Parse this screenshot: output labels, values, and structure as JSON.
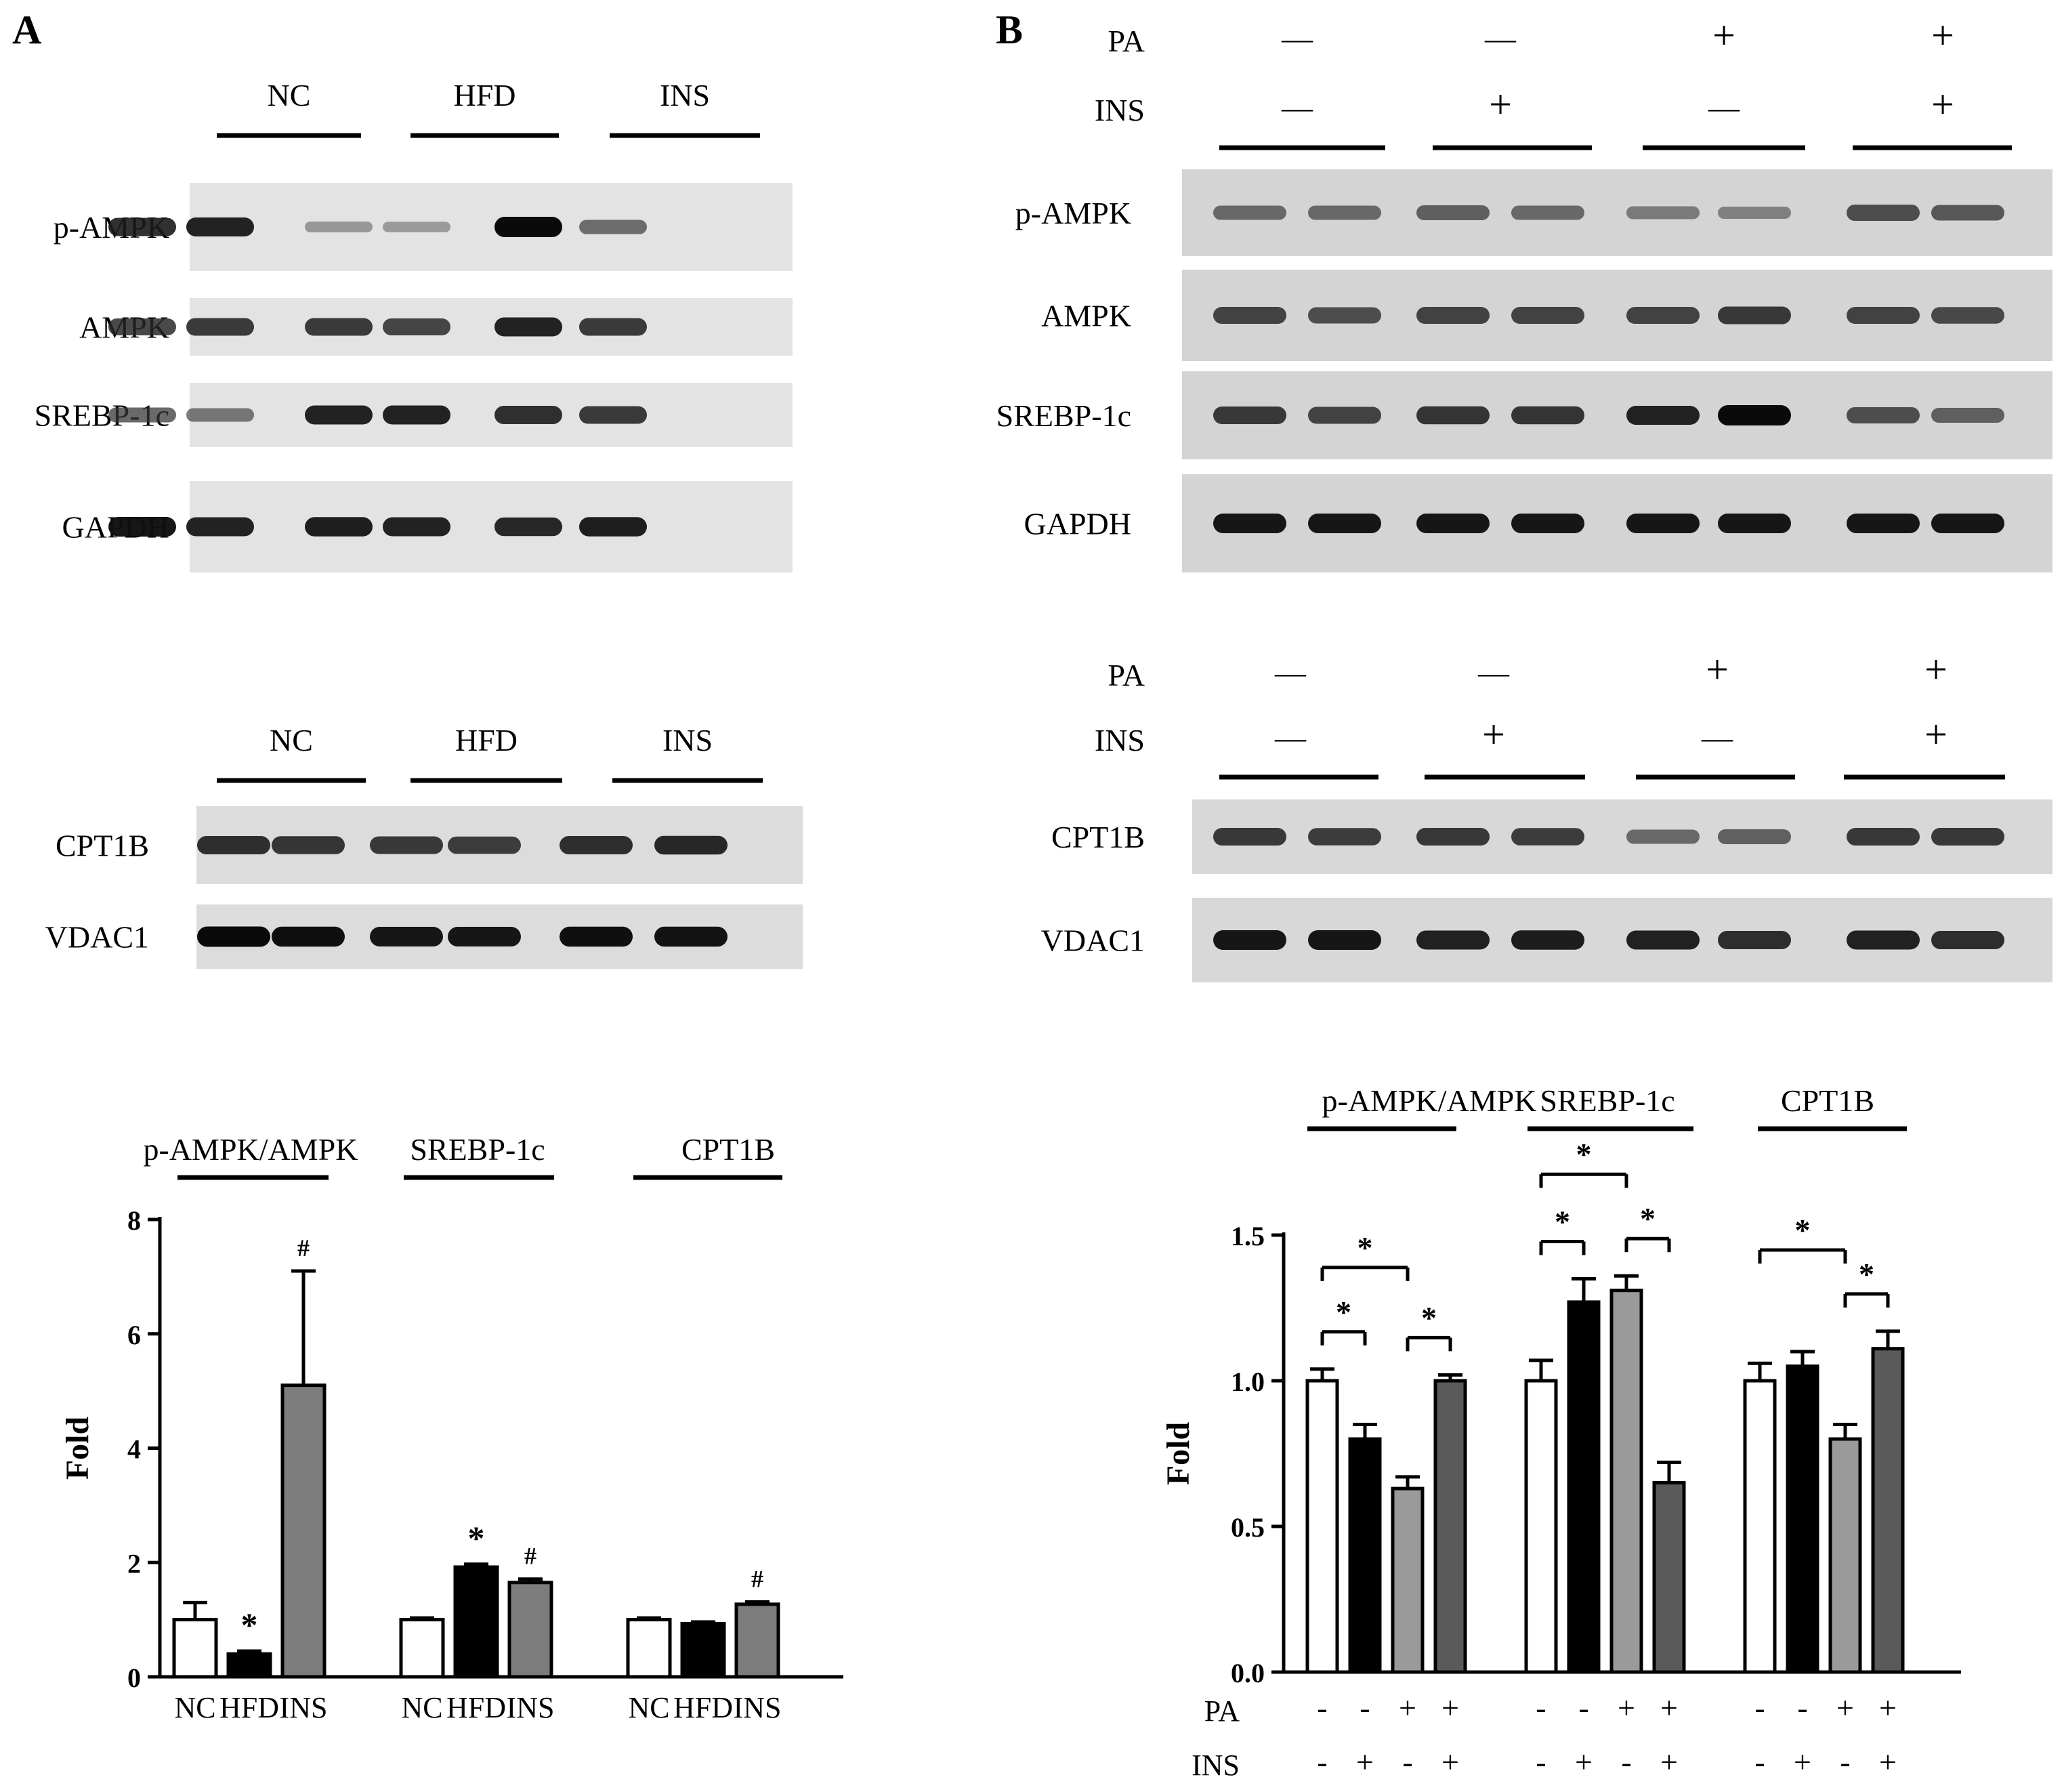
{
  "panel_a": {
    "letter": "A",
    "blot1": {
      "group_labels": [
        "NC",
        "HFD",
        "INS"
      ],
      "rows": [
        {
          "label": "p-AMPK",
          "intensities": [
            0.85,
            0.9,
            0.3,
            0.28,
            1.0,
            0.55
          ]
        },
        {
          "label": "AMPK",
          "intensities": [
            0.75,
            0.8,
            0.8,
            0.75,
            0.9,
            0.8
          ]
        },
        {
          "label": "SREBP-1c",
          "intensities": [
            0.6,
            0.5,
            0.9,
            0.9,
            0.85,
            0.8
          ]
        },
        {
          "label": "GAPDH",
          "intensities": [
            0.95,
            0.9,
            0.92,
            0.9,
            0.88,
            0.92
          ]
        }
      ]
    },
    "blot2": {
      "group_labels": [
        "NC",
        "HFD",
        "INS"
      ],
      "rows": [
        {
          "label": "CPT1B",
          "intensities": [
            0.85,
            0.82,
            0.8,
            0.78,
            0.85,
            0.88
          ]
        },
        {
          "label": "VDAC1",
          "intensities": [
            1.0,
            0.98,
            0.95,
            0.95,
            0.98,
            0.97
          ]
        }
      ]
    }
  },
  "panel_b": {
    "letter": "B",
    "blot1": {
      "treatment_rows": [
        {
          "label": "PA",
          "signs": [
            "—",
            "—",
            "+",
            "+"
          ]
        },
        {
          "label": "INS",
          "signs": [
            "—",
            "+",
            "—",
            "+"
          ]
        }
      ],
      "rows": [
        {
          "label": "p-AMPK",
          "intensities": [
            0.55,
            0.55,
            0.6,
            0.55,
            0.45,
            0.4,
            0.7,
            0.65
          ]
        },
        {
          "label": "AMPK",
          "intensities": [
            0.75,
            0.7,
            0.75,
            0.75,
            0.75,
            0.8,
            0.75,
            0.72
          ]
        },
        {
          "label": "SREBP-1c",
          "intensities": [
            0.8,
            0.75,
            0.82,
            0.82,
            0.9,
            1.0,
            0.7,
            0.6
          ]
        },
        {
          "label": "GAPDH",
          "intensities": [
            0.95,
            0.95,
            0.95,
            0.95,
            0.95,
            0.95,
            0.95,
            0.95
          ]
        }
      ]
    },
    "blot2": {
      "treatment_rows": [
        {
          "label": "PA",
          "signs": [
            "—",
            "—",
            "+",
            "+"
          ]
        },
        {
          "label": "INS",
          "signs": [
            "—",
            "+",
            "—",
            "+"
          ]
        }
      ],
      "rows": [
        {
          "label": "CPT1B",
          "intensities": [
            0.8,
            0.78,
            0.8,
            0.78,
            0.55,
            0.6,
            0.8,
            0.8
          ]
        },
        {
          "label": "VDAC1",
          "intensities": [
            0.95,
            0.95,
            0.9,
            0.92,
            0.9,
            0.85,
            0.9,
            0.85
          ]
        }
      ]
    }
  },
  "chart_data": [
    {
      "type": "bar",
      "groups": [
        "p-AMPK/AMPK",
        "SREBP-1c",
        "CPT1B"
      ],
      "categories": [
        "NC",
        "HFD",
        "INS"
      ],
      "series": [
        {
          "name": "NC",
          "values": [
            1.0,
            1.0,
            1.0
          ],
          "errors": [
            0.3,
            0.03,
            0.03
          ],
          "color": "#ffffff"
        },
        {
          "name": "HFD",
          "values": [
            0.4,
            1.92,
            0.93
          ],
          "errors": [
            0.05,
            0.05,
            0.03
          ],
          "color": "#000000"
        },
        {
          "name": "INS",
          "values": [
            5.1,
            1.65,
            1.27
          ],
          "errors": [
            2.0,
            0.06,
            0.04
          ],
          "color": "#7d7d7d"
        }
      ],
      "annotations": [
        {
          "group": 0,
          "bar": 1,
          "text": "*"
        },
        {
          "group": 0,
          "bar": 2,
          "text": "#"
        },
        {
          "group": 1,
          "bar": 1,
          "text": "*"
        },
        {
          "group": 1,
          "bar": 2,
          "text": "#"
        },
        {
          "group": 2,
          "bar": 2,
          "text": "#"
        }
      ],
      "ylabel": "Fold",
      "yticks": [
        0,
        2,
        4,
        6,
        8
      ],
      "ylim": [
        0,
        8
      ]
    },
    {
      "type": "bar",
      "groups": [
        "p-AMPK/AMPK",
        "SREBP-1c",
        "CPT1B"
      ],
      "conditions": [
        {
          "PA": "-",
          "INS": "-"
        },
        {
          "PA": "-",
          "INS": "+"
        },
        {
          "PA": "+",
          "INS": "-"
        },
        {
          "PA": "+",
          "INS": "+"
        }
      ],
      "row_labels": [
        "PA",
        "INS"
      ],
      "series": [
        {
          "values": [
            1.0,
            1.0,
            1.0
          ],
          "errors": [
            0.04,
            0.07,
            0.06
          ],
          "color": "#ffffff"
        },
        {
          "values": [
            0.8,
            1.27,
            1.05
          ],
          "errors": [
            0.05,
            0.08,
            0.05
          ],
          "color": "#000000"
        },
        {
          "values": [
            0.63,
            1.31,
            0.8
          ],
          "errors": [
            0.04,
            0.05,
            0.05
          ],
          "color": "#9a9a9a"
        },
        {
          "values": [
            1.0,
            0.65,
            1.11
          ],
          "errors": [
            0.02,
            0.07,
            0.06
          ],
          "color": "#5a5a5a"
        }
      ],
      "comparisons": [
        {
          "group": 0,
          "from": 0,
          "to": 2,
          "text": "*"
        },
        {
          "group": 0,
          "from": 0,
          "to": 1,
          "text": "*"
        },
        {
          "group": 0,
          "from": 2,
          "to": 3,
          "text": "*"
        },
        {
          "group": 1,
          "from": 0,
          "to": 2,
          "text": "*"
        },
        {
          "group": 1,
          "from": 0,
          "to": 1,
          "text": "*"
        },
        {
          "group": 1,
          "from": 2,
          "to": 3,
          "text": "*"
        },
        {
          "group": 2,
          "from": 0,
          "to": 2,
          "text": "*"
        },
        {
          "group": 2,
          "from": 2,
          "to": 3,
          "text": "*"
        }
      ],
      "ylabel": "Fold",
      "yticks": [
        "0.0",
        "0.5",
        "1.0",
        "1.5"
      ],
      "ylim": [
        0,
        1.5
      ]
    }
  ]
}
